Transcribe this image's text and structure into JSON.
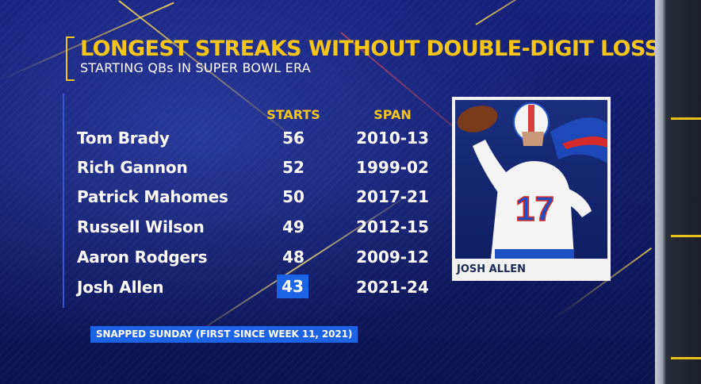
{
  "graphic": {
    "title": "LONGEST STREAKS WITHOUT DOUBLE-DIGIT LOSS",
    "subtitle": "STARTING QBs IN SUPER BOWL ERA"
  },
  "table": {
    "columns": {
      "starts": "STARTS",
      "span": "SPAN"
    },
    "rows": [
      {
        "name": "Tom Brady",
        "starts": "56",
        "span": "2010-13"
      },
      {
        "name": "Rich Gannon",
        "starts": "52",
        "span": "1999-02"
      },
      {
        "name": "Patrick Mahomes",
        "starts": "50",
        "span": "2017-21"
      },
      {
        "name": "Russell Wilson",
        "starts": "49",
        "span": "2012-15"
      },
      {
        "name": "Aaron Rodgers",
        "starts": "48",
        "span": "2009-12"
      },
      {
        "name": "Josh Allen",
        "starts": "43",
        "span": "2021-24"
      }
    ],
    "highlight_color": "#1d63e6"
  },
  "note": "SNAPPED SUNDAY (FIRST SINCE WEEK 11, 2021)",
  "player_photo": {
    "caption": "JOSH ALLEN",
    "jersey_number": "17"
  },
  "colors": {
    "title": "#f5c518",
    "accent_blue": "#1d63e6",
    "background": "#15207a"
  }
}
